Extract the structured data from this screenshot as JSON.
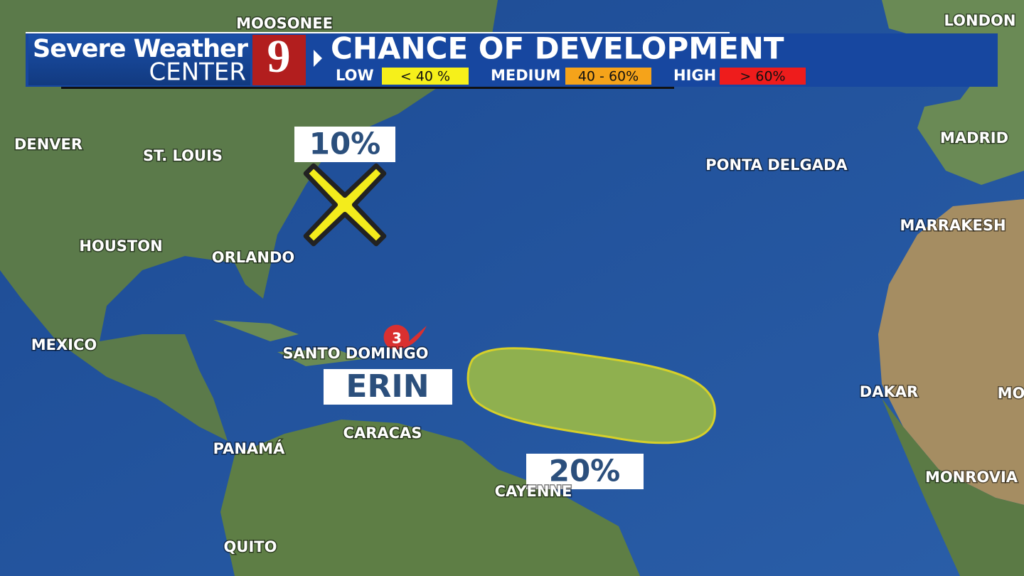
{
  "header": {
    "brand_line1": "Severe Weather",
    "brand_line2": "CENTER",
    "logo": "9",
    "title": "CHANCE OF DEVELOPMENT"
  },
  "legend": [
    {
      "label": "LOW",
      "range": "< 40 %"
    },
    {
      "label": "MEDIUM",
      "range": "40 - 60%"
    },
    {
      "label": "HIGH",
      "range": "> 60%"
    }
  ],
  "cities": [
    "MOOSONEE",
    "LONDON",
    "DENVER",
    "ST. LOUIS",
    "MADRID",
    "PONTA DELGADA",
    "MARRAKESH",
    "HOUSTON",
    "ORLANDO",
    "MEXICO",
    "SANTO DOMINGO",
    "DAKAR",
    "MO",
    "CARACAS",
    "PANAMÁ",
    "MONROVIA",
    "CAYENNE",
    "QUITO"
  ],
  "areas": [
    {
      "chance": "10%"
    },
    {
      "chance": "20%"
    }
  ],
  "storm": {
    "name": "ERIN",
    "category": "3"
  }
}
